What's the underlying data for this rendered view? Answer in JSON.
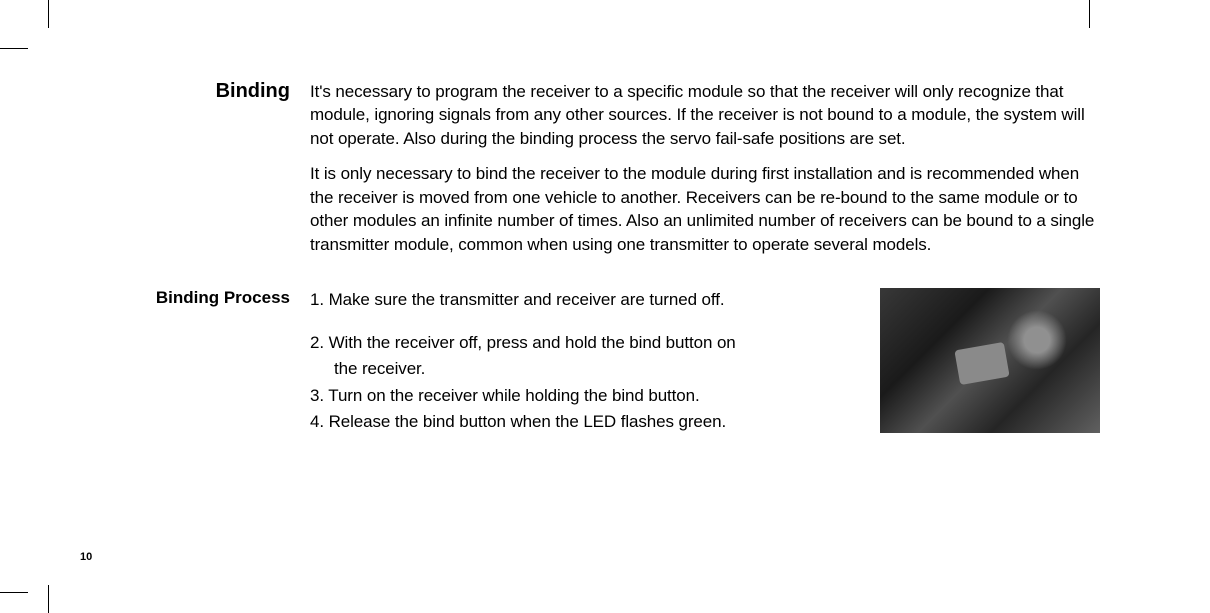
{
  "pageNumber": "10",
  "sections": {
    "binding": {
      "label": "Binding",
      "paragraph1": "It's necessary to program the receiver to a specific module so that the receiver will only recognize that module, ignoring signals from any other sources. If the receiver is not bound to a module, the system will not operate. Also during the binding process the servo fail-safe positions are set.",
      "paragraph2": "It is only necessary to bind the receiver to the module during first installation and is recommended when the receiver is moved from one vehicle to another. Receivers can be re-bound to the same module or to other modules an infinite number of times. Also an unlimited number of receivers can be bound to a single transmitter module, common when using one transmitter to operate several models."
    },
    "bindingProcess": {
      "label": "Binding Process",
      "step1": "1. Make sure the transmitter and receiver are turned off.",
      "step2a": "2. With the receiver off, press and hold the bind button on",
      "step2b": "the receiver.",
      "step3": "3. Turn on the receiver while holding the bind button.",
      "step4": "4. Release the bind button when the LED flashes green."
    }
  },
  "photo": {
    "description": "receiver-bind-button-photo"
  }
}
